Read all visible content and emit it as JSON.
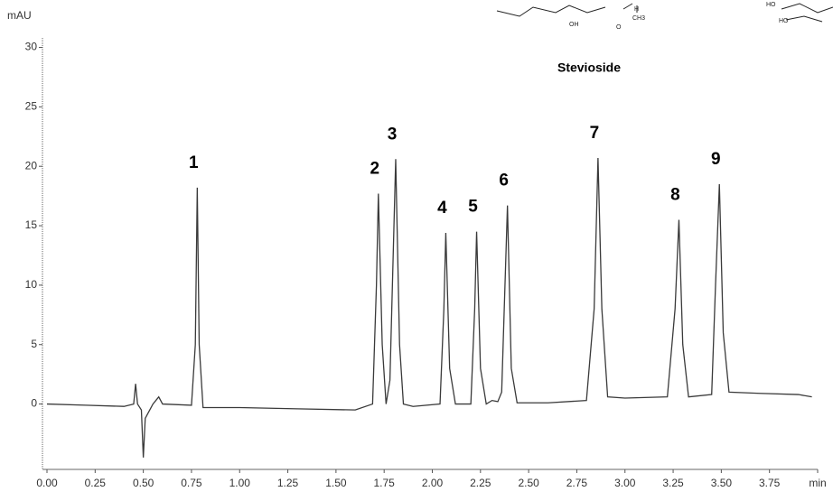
{
  "chart_data": {
    "type": "line",
    "y_label": "mAU",
    "title": "Stevioside",
    "structure_labels": [
      "OH",
      "O",
      "H",
      "CH3",
      "HO",
      "HO"
    ],
    "xlim": [
      0,
      4.0
    ],
    "ylim": [
      -5.5,
      30.8
    ],
    "xticks": [
      {
        "value": 0,
        "label": "0.00"
      },
      {
        "value": 0.25,
        "label": "0.25"
      },
      {
        "value": 0.5,
        "label": "0.50"
      },
      {
        "value": 0.75,
        "label": "0.75"
      },
      {
        "value": 1,
        "label": "1.00"
      },
      {
        "value": 1.25,
        "label": "1.25"
      },
      {
        "value": 1.5,
        "label": "1.50"
      },
      {
        "value": 1.75,
        "label": "1.75"
      },
      {
        "value": 2,
        "label": "2.00"
      },
      {
        "value": 2.25,
        "label": "2.25"
      },
      {
        "value": 2.5,
        "label": "2.50"
      },
      {
        "value": 2.75,
        "label": "2.75"
      },
      {
        "value": 3,
        "label": "3.00"
      },
      {
        "value": 3.25,
        "label": "3.25"
      },
      {
        "value": 3.5,
        "label": "3.50"
      },
      {
        "value": 3.75,
        "label": "3.75"
      },
      {
        "value": 4,
        "label": "min"
      }
    ],
    "yticks": [
      0,
      5,
      10,
      15,
      20,
      25,
      30
    ],
    "series": [
      {
        "color": "#3a3a3a",
        "x": [
          0.0,
          0.2,
          0.4,
          0.45,
          0.46,
          0.47,
          0.49,
          0.5,
          0.51,
          0.55,
          0.58,
          0.6,
          0.75,
          0.77,
          0.78,
          0.79,
          0.81,
          1.0,
          1.3,
          1.6,
          1.69,
          1.71,
          1.72,
          1.74,
          1.76,
          1.78,
          1.81,
          1.83,
          1.85,
          1.9,
          2.04,
          2.06,
          2.07,
          2.09,
          2.12,
          2.2,
          2.22,
          2.23,
          2.25,
          2.28,
          2.31,
          2.34,
          2.36,
          2.39,
          2.41,
          2.44,
          2.6,
          2.8,
          2.84,
          2.86,
          2.88,
          2.91,
          3.0,
          3.22,
          3.26,
          3.28,
          3.3,
          3.33,
          3.45,
          3.47,
          3.49,
          3.51,
          3.54,
          3.7,
          3.9,
          3.97
        ],
        "values": [
          0,
          -0.1,
          -0.2,
          0,
          1.7,
          0,
          -0.5,
          -4.5,
          -1.2,
          0,
          0.6,
          0,
          -0.1,
          5,
          18.2,
          5,
          -0.3,
          -0.3,
          -0.4,
          -0.5,
          0,
          10,
          17.7,
          5,
          0,
          2,
          20.6,
          5,
          0,
          -0.2,
          0,
          8,
          14.4,
          3,
          0,
          0,
          8,
          14.5,
          3,
          0,
          0.3,
          0.2,
          1,
          16.7,
          3,
          0.1,
          0.1,
          0.3,
          8,
          20.7,
          8,
          0.6,
          0.5,
          0.6,
          8,
          15.5,
          5,
          0.6,
          0.8,
          10,
          18.5,
          6,
          1,
          0.9,
          0.8,
          0.6
        ]
      }
    ],
    "peaks": [
      {
        "label": "1",
        "x": 0.78,
        "y": 18.2
      },
      {
        "label": "2",
        "x": 1.72,
        "y": 17.7
      },
      {
        "label": "3",
        "x": 1.81,
        "y": 20.6
      },
      {
        "label": "4",
        "x": 2.07,
        "y": 14.4
      },
      {
        "label": "5",
        "x": 2.23,
        "y": 14.5
      },
      {
        "label": "6",
        "x": 2.39,
        "y": 16.7
      },
      {
        "label": "7",
        "x": 2.86,
        "y": 20.7
      },
      {
        "label": "8",
        "x": 3.28,
        "y": 15.5
      },
      {
        "label": "9",
        "x": 3.49,
        "y": 18.5
      }
    ]
  }
}
